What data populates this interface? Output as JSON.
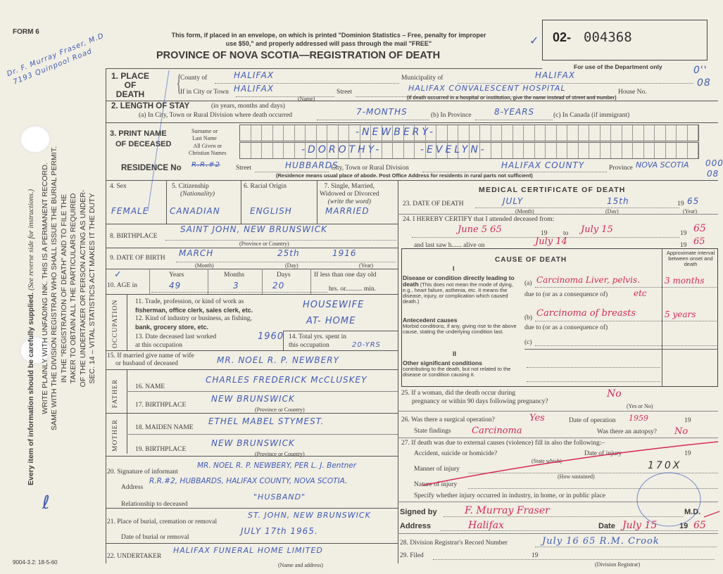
{
  "margin": {
    "form_number": "FORM 6",
    "doctor_note": [
      "Dr. F. Murray Fraser, M.D",
      "7193 Quinpool Road"
    ],
    "statute_lines": [
      "SEC. 14 – VITAL STATISTICS ACT MAKES IT THE DUTY",
      "OF THE UNDERTAKER OR PERSON ACTING AS UNDER-",
      "TAKER TO OBTAIN ALL THE PARTICULARS REQUIRED",
      "IN THE \"REGISTRATION OF DEATH\" AND TO FILE THE",
      "SAME WITH THE DIVISION REGISTRAR WHO SHALL ISSUE THE BURIAL PERMIT.",
      "WRITE PLAINLY WITH UNFADING INK. THIS IS A PERMANENT RECORD."
    ],
    "every_item": "Every item of information should be carefully supplied.",
    "see_reverse": "(See reverse side for instructions.)",
    "footer_code": "9004-3.2: 18-5-60",
    "right_marks": [
      "0''",
      "08",
      "000",
      "08"
    ]
  },
  "header": {
    "notice_1": "This form, if placed in an envelope, on which is printed \"Dominion Statistics – Free, penalty for improper",
    "notice_2": "use $50,\" and properly addressed will pass through the mail \"FREE\"",
    "title": "PROVINCE OF NOVA SCOTIA—REGISTRATION OF DEATH",
    "reg_prefix": "02-",
    "reg_number": "004368",
    "dept_only": "For use of the Department only"
  },
  "place": {
    "label_1": "1. PLACE",
    "label_2": "OF",
    "label_3": "DEATH",
    "county_label": "County of",
    "county": "HALIFAX",
    "municipality_label": "Municipality of",
    "municipality": "HALIFAX",
    "city_label": "If in City or Town",
    "city": "HALIFAX",
    "name_hint": "(Name)",
    "street_label": "Street",
    "street": "HALIFAX CONVALESCENT HOSPITAL",
    "house_label": "House No.",
    "hospital_hint": "(If death occurred in a hospital or institution, give the name instead of street and number)"
  },
  "stay": {
    "label": "2. LENGTH OF STAY",
    "label_hint": "(in years, months and days)",
    "a_label": "(a) In City, Town or Rural Division where death occurred",
    "a": "7-MONTHS",
    "b_label": "(b) In Province",
    "b": "8-YEARS",
    "c_label": "(c) In Canada (if immigrant)"
  },
  "name": {
    "label_1": "3. PRINT NAME",
    "label_2": "OF DECEASED",
    "surname_label_1": "Surname or",
    "surname_label_2": "Last Name",
    "given_label_1": "All Given or",
    "given_label_2": "Christian Names",
    "surname": "-NEWBERY-",
    "given_1": "-DOROTHY-",
    "given_2": "-EVELYN-"
  },
  "residence": {
    "label": "RESIDENCE No",
    "number_struck": "R.R.#2",
    "street_label": "Street",
    "street": "HUBBARDS",
    "city_label": "City, Town or Rural Division",
    "city": "HALIFAX COUNTY",
    "province_label": "Province",
    "province": "NOVA SCOTIA",
    "hint": "(Residence means usual place of abode. Post Office Address for residents in rural parts not sufficient)"
  },
  "personal": {
    "sex_label": "4. Sex",
    "sex": "FEMALE",
    "citizenship_label": "5. Citizenship",
    "citizenship_hint": "(Nationality)",
    "citizenship": "CANADIAN",
    "racial_label": "6. Racial Origin",
    "racial": "ENGLISH",
    "marital_label_1": "7. Single, Married,",
    "marital_label_2": "Widowed or Divorced",
    "marital_label_3": "(write the word)",
    "marital": "MARRIED",
    "birthplace_label": "8. BIRTHPLACE",
    "birthplace": "SAINT JOHN, NEW BRUNSWICK",
    "province_hint": "(Province or Country)",
    "dob_label": "9. DATE OF BIRTH",
    "dob_month": "MARCH",
    "dob_day": "25th",
    "dob_year": "1916",
    "month_hint": "(Month)",
    "day_hint": "(Day)",
    "year_hint": "(Year)",
    "age_label": "10. AGE in",
    "years_label": "Years",
    "months_label": "Months",
    "days_label": "Days",
    "lt_day_label": "If less than one day old",
    "hrs_label": "hrs. or.......... min.",
    "age_years": "49",
    "age_months": "3",
    "age_days": "20"
  },
  "occupation": {
    "side_label": "OCCUPATION",
    "trade_label_1": "11. Trade, profession, or kind of work as",
    "trade_label_2": "fisherman, office clerk, sales clerk, etc.",
    "trade": "HOUSEWIFE",
    "industry_label_1": "12. Kind of industry or business, as fishing,",
    "industry_label_2": "bank, grocery store, etc.",
    "industry": "AT- HOME",
    "last_worked_label_1": "13. Date deceased last worked",
    "last_worked_label_2": "at this occupation",
    "last_worked": "1960",
    "total_label_1": "14. Total yrs. spent in",
    "total_label_2": "this occupation",
    "total": "20-YRS"
  },
  "spouse": {
    "label_1": "15. If married give name of wife",
    "label_2": "or husband of deceased",
    "value": "MR. NOEL R. P. NEWBERY"
  },
  "father": {
    "side_label": "FATHER",
    "name_label": "16. NAME",
    "name": "CHARLES FREDERICK McCLUSKEY",
    "birthplace_label": "17. BIRTHPLACE",
    "birthplace": "NEW BRUNSWICK",
    "hint": "(Province or Country)"
  },
  "mother": {
    "side_label": "MOTHER",
    "name_label": "18. MAIDEN NAME",
    "name": "ETHEL MABEL STYMEST.",
    "birthplace_label": "19. BIRTHPLACE",
    "birthplace": "NEW BRUNSWICK",
    "hint": "(Province or Country)"
  },
  "informant": {
    "label": "20. Signature of informant",
    "signature": "MR. NOEL R. P. NEWBERY, PER L. J. Bentner",
    "address_label": "Address",
    "address": "R.R.#2, HUBBARDS, HALIFAX COUNTY, NOVA SCOTIA.",
    "relationship_label": "Relationship to deceased",
    "relationship": "\"HUSBAND\""
  },
  "burial": {
    "place_label": "21. Place of burial, cremation or removal",
    "place": "ST. JOHN, NEW BRUNSWICK",
    "date_label": "Date of burial or removal",
    "date": "JULY 17th 1965."
  },
  "undertaker": {
    "label": "22. UNDERTAKER",
    "value": "HALIFAX FUNERAL HOME LIMITED",
    "hint": "(Name and address)"
  },
  "medical": {
    "title": "MEDICAL CERTIFICATE OF DEATH",
    "dod_label": "23. DATE OF DEATH",
    "dod_month": "JULY",
    "dod_day": "15th",
    "dod_year": "65",
    "century": "19",
    "month_hint": "(Month)",
    "day_hint": "(Day)",
    "year_hint": "(Year)",
    "certify_label": "24. I HEREBY CERTIFY that I attended deceased from:",
    "from": "June 5 65",
    "to_label": "to",
    "to": "July 15",
    "to_year": "65",
    "last_saw_label": "and last saw h...... alive on",
    "last_saw": "July 14",
    "last_saw_year": "65"
  },
  "cause": {
    "title": "CAUSE OF DEATH",
    "roman_1": "I",
    "roman_2": "II",
    "interval_label": "Approximate interval between onset and death",
    "direct_title": "Disease or condition directly leading to death",
    "direct_text": "(This does not mean the mode of dying, e.g., heart failure, asthenia, etc. It means the disease, injury, or complication which caused death.)",
    "antecedent_title": "Antecedent causes",
    "antecedent_text": "Morbid conditions, if any, giving rise to the above cause, stating the underlying condition last.",
    "other_title": "Other significant conditions",
    "other_text": "contributing to the death, but not related to the disease or condition causing it.",
    "a_label": "(a)",
    "a": "Carcinoma Liver, pelvis.",
    "a_interval": "3 months",
    "due_to": "due to (or as a consequence of)",
    "a_due": "etc",
    "b_label": "(b)",
    "b": "Carcinoma of breasts",
    "b_interval": "5 years",
    "c_label": "(c)"
  },
  "q25": {
    "label_1": "25. If a woman, did the death occur during",
    "label_2": "pregnancy or within 90 days following pregnancy?",
    "value": "No",
    "hint": "(Yes or No)"
  },
  "q26": {
    "label": "26. Was there a surgical operation?",
    "value": "Yes",
    "date_label": "Date of operation",
    "date": "1959",
    "century": "19",
    "findings_label": "State findings",
    "findings": "Carcinoma",
    "autopsy_label": "Was there an autopsy?",
    "autopsy": "No"
  },
  "q27": {
    "label": "27. If death was due to external causes (violence) fill in also the following:–",
    "accident_label": "Accident, suicide or homicide?",
    "state_hint": "(State which)",
    "injury_date_label": "Date of injury",
    "century": "19",
    "manner_label": "Manner of injury",
    "manner": "170X",
    "how_hint": "(How sustained)",
    "nature_label": "Nature of injury",
    "specify_label": "Specify whether injury occurred in industry, in home, or in public place"
  },
  "signoff": {
    "signed_label": "Signed by",
    "signature": "F. Murray Fraser",
    "md": "M.D.",
    "address_label": "Address",
    "address": "Halifax",
    "date_label": "Date",
    "date": "July 15",
    "century": "19",
    "year": "65"
  },
  "registrar": {
    "record_label": "28. Division Registrar's Record Number",
    "filed_label": "29. Filed",
    "century": "19",
    "hint": "(Division Registrar)",
    "filed_annotation": "July 16 65 R.M. Crook"
  }
}
